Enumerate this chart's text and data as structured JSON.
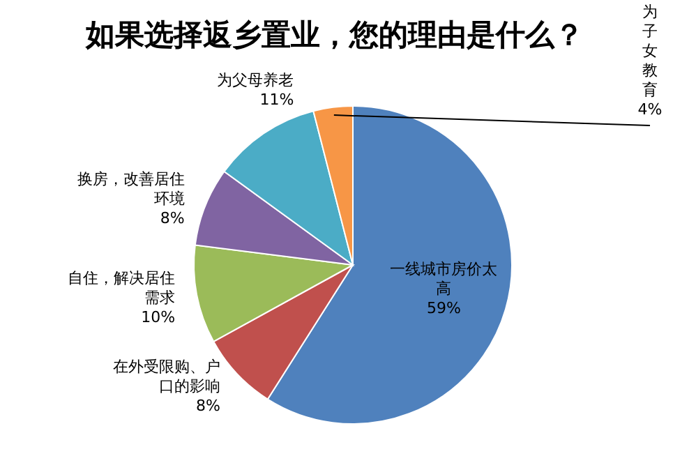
{
  "chart_data": {
    "type": "pie",
    "title": "如果选择返乡置业，您的理由是什么？",
    "categories": [
      "一线城市房价太高",
      "在外受限购、户口的影响",
      "自住，解决居住需求",
      "换房，改善居住环境",
      "为父母养老",
      "为子女教育"
    ],
    "values": [
      59,
      8,
      10,
      8,
      11,
      4
    ],
    "value_labels": [
      "59%",
      "8%",
      "10%",
      "8%",
      "11%",
      "4%"
    ],
    "colors": [
      "#4f81bd",
      "#c0504d",
      "#9bbb59",
      "#8064a2",
      "#4bacc6",
      "#f79646"
    ],
    "legend": false
  }
}
